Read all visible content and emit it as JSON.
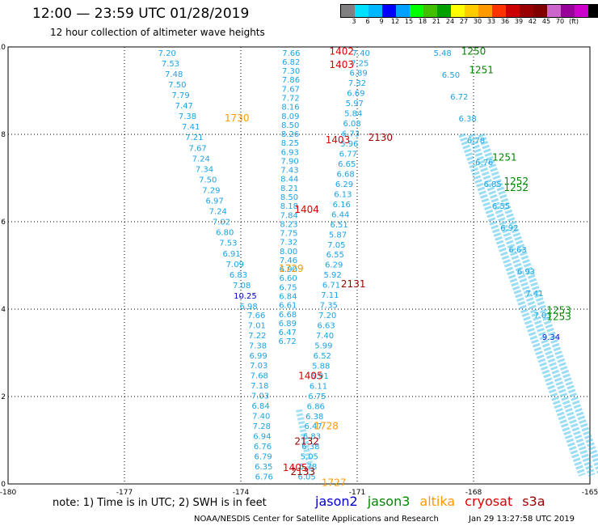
{
  "header": {
    "title": "12:00 — 23:59 UTC 01/28/2019",
    "subtitle": "12 hour collection of altimeter wave heights"
  },
  "colorbar": {
    "colors": [
      "#808080",
      "#00e0ff",
      "#00b8ff",
      "#0000ff",
      "#00a0ff",
      "#00ff00",
      "#40c000",
      "#00a000",
      "#ffff00",
      "#ffcc00",
      "#ff9900",
      "#ff3300",
      "#cc0000",
      "#990000",
      "#800000",
      "#cc66cc",
      "#990099",
      "#cc00cc",
      "#000000"
    ],
    "labels": [
      "3",
      "6",
      "9",
      "12",
      "15",
      "18",
      "21",
      "24",
      "27",
      "30",
      "33",
      "36",
      "39",
      "42",
      "45",
      "70",
      "(ft)"
    ]
  },
  "chart_data": {
    "type": "scatter",
    "xlim": [
      -180,
      -165
    ],
    "ylim": [
      0,
      10
    ],
    "x_ticks": [
      "-180",
      "-177",
      "-174",
      "-171",
      "-168",
      "-165"
    ],
    "y_ticks": [
      "0",
      "2",
      "4",
      "6",
      "8",
      "10"
    ],
    "grid": true,
    "track_values": {
      "left": [
        "7.20",
        "7.53",
        "7.48",
        "7.50",
        "7.79",
        "7.47",
        "7.38",
        "7.41",
        "7.21",
        "7.67",
        "7.24",
        "7.34",
        "7.50",
        "7.29",
        "6.97",
        "7.24",
        "7.02",
        "6.80",
        "7.53",
        "6.91",
        "7.09",
        "6.83",
        "7.08",
        "10.25",
        "6.98"
      ],
      "left_lower": [
        "7.66",
        "7.01",
        "7.22",
        "7.38",
        "6.99",
        "7.03",
        "7.68",
        "7.18",
        "7.03",
        "6.84",
        "7.40",
        "7.28",
        "6.94",
        "6.76",
        "6.79",
        "6.35",
        "6.76"
      ],
      "mid": [
        "7.66",
        "6.82",
        "7.30",
        "7.86",
        "7.67",
        "7.72",
        "8.16",
        "8.09",
        "8.50",
        "8.26",
        "8.25",
        "6.93",
        "7.90",
        "7.43",
        "8.44",
        "8.21",
        "8.50",
        "8.18",
        "7.84",
        "8.23",
        "7.75",
        "7.32",
        "8.00",
        "7.46",
        "6.90",
        "6.60",
        "6.75",
        "6.84",
        "6.61",
        "6.68",
        "6.89",
        "6.47",
        "6.72"
      ],
      "right": [
        "7.40",
        "7.25",
        "6.89",
        "7.32",
        "6.69",
        "5.97",
        "5.84",
        "6.08",
        "6.73",
        "5.96",
        "6.77",
        "6.65",
        "6.68",
        "6.29",
        "6.13",
        "6.16",
        "6.44",
        "6.51",
        "5.87",
        "7.05",
        "6.55",
        "6.29",
        "5.92",
        "6.71",
        "7.11",
        "7.35",
        "7.20",
        "6.63",
        "7.40",
        "5.99",
        "6.52",
        "5.88",
        "5.91",
        "6.11",
        "6.75",
        "6.86",
        "6.38",
        "6.47",
        "6.83",
        "6.38",
        "5.05",
        "5.78",
        "6.05"
      ],
      "far_right": [
        "5.48",
        "6.50",
        "6.72",
        "6.38",
        "6.78",
        "6.76",
        "6.85",
        "6.55",
        "6.92",
        "6.63",
        "6.93",
        "7.41",
        "7.03",
        "9.34"
      ]
    },
    "time_labels": [
      {
        "text": "1402",
        "lon": -171.4,
        "lat": 9.82,
        "color": "#dd0000"
      },
      {
        "text": "1403",
        "lon": -171.4,
        "lat": 9.52,
        "color": "#dd0000"
      },
      {
        "text": "1403",
        "lon": -171.5,
        "lat": 7.8,
        "color": "#dd0000"
      },
      {
        "text": "1404",
        "lon": -172.3,
        "lat": 6.2,
        "color": "#dd0000"
      },
      {
        "text": "1405",
        "lon": -172.2,
        "lat": 2.4,
        "color": "#dd0000"
      },
      {
        "text": "1405",
        "lon": -172.6,
        "lat": 0.3,
        "color": "#dd0000"
      },
      {
        "text": "2130",
        "lon": -170.4,
        "lat": 7.85,
        "color": "#990000"
      },
      {
        "text": "2131",
        "lon": -171.1,
        "lat": 4.5,
        "color": "#990000"
      },
      {
        "text": "2132",
        "lon": -172.3,
        "lat": 0.9,
        "color": "#990000"
      },
      {
        "text": "2133",
        "lon": -172.4,
        "lat": 0.2,
        "color": "#990000"
      },
      {
        "text": "1730",
        "lon": -174.1,
        "lat": 8.3,
        "color": "#ff9900"
      },
      {
        "text": "1729",
        "lon": -172.7,
        "lat": 4.85,
        "color": "#ff9900"
      },
      {
        "text": "1728",
        "lon": -171.8,
        "lat": 1.25,
        "color": "#ff9900"
      },
      {
        "text": "1727",
        "lon": -171.6,
        "lat": -0.05,
        "color": "#ff9900"
      },
      {
        "text": "1250",
        "lon": -168.0,
        "lat": 9.82,
        "color": "#008800"
      },
      {
        "text": "1251",
        "lon": -167.8,
        "lat": 9.4,
        "color": "#008800"
      },
      {
        "text": "1251",
        "lon": -167.2,
        "lat": 7.4,
        "color": "#008800"
      },
      {
        "text": "1252",
        "lon": -166.9,
        "lat": 6.85,
        "color": "#008800"
      },
      {
        "text": "1252",
        "lon": -166.9,
        "lat": 6.7,
        "color": "#008800"
      },
      {
        "text": "1253",
        "lon": -165.8,
        "lat": 3.9,
        "color": "#008800"
      },
      {
        "text": "1253",
        "lon": -165.8,
        "lat": 3.75,
        "color": "#008800"
      }
    ]
  },
  "footer": {
    "note": "note:  1) Time is in UTC; 2) SWH is in feet",
    "legend": [
      {
        "name": "jason2",
        "color": "#0000cc"
      },
      {
        "name": "jason3",
        "color": "#008800"
      },
      {
        "name": "altika",
        "color": "#ff9900"
      },
      {
        "name": "cryosat",
        "color": "#dd0000"
      },
      {
        "name": "s3a",
        "color": "#990000"
      }
    ],
    "credit": "NOAA/NESDIS Center for Satellite Applications and Research",
    "timestamp": "Jan 29 13:27:58 UTC 2019"
  }
}
